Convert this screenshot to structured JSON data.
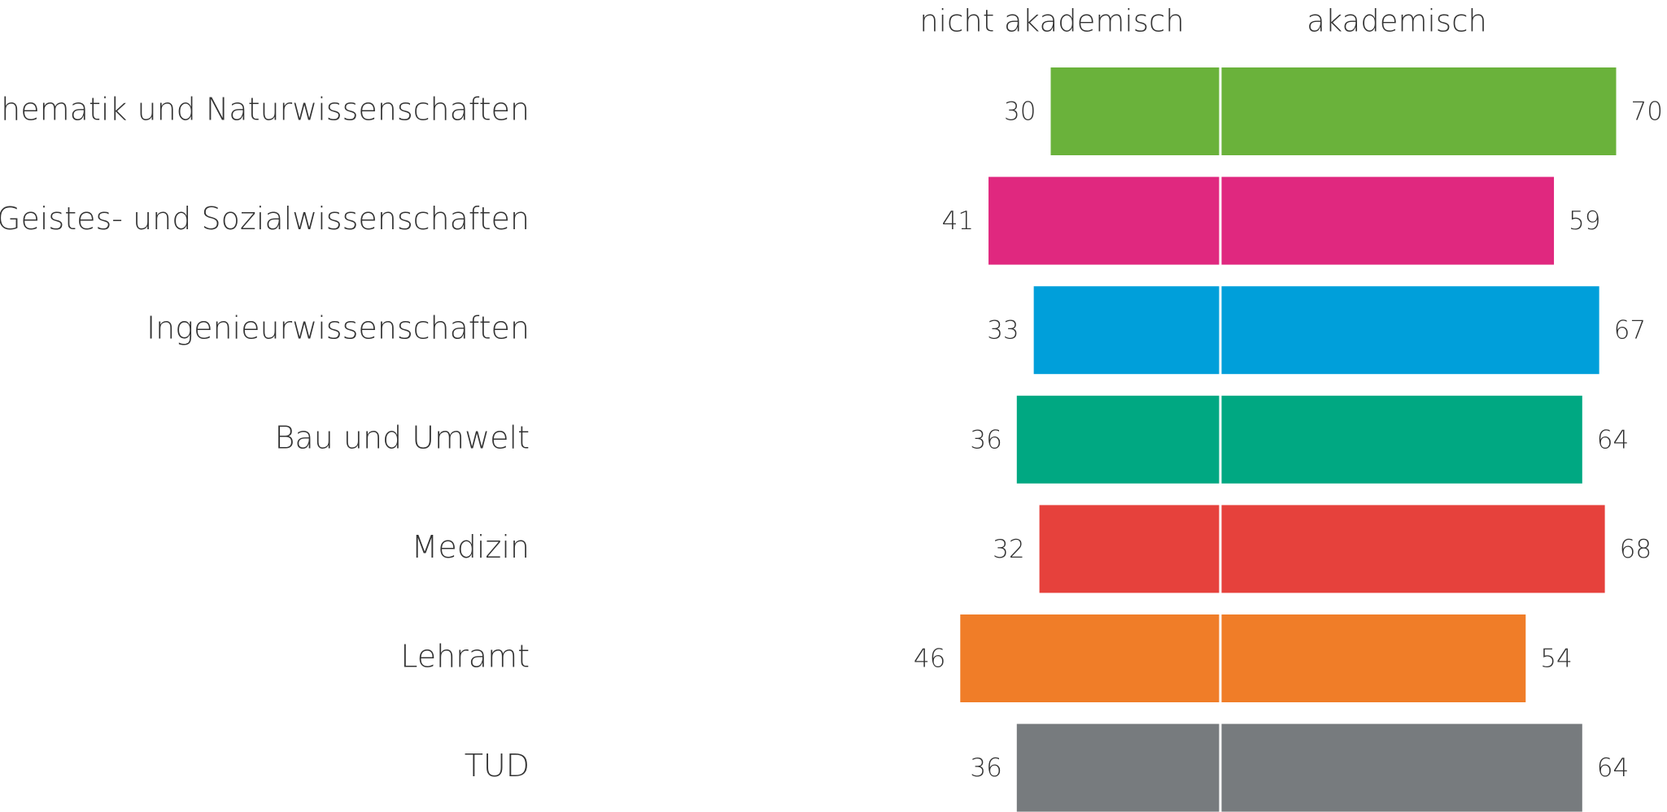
{
  "chart_data": {
    "type": "bar",
    "categories": [
      "Mathematik und Naturwissenschaften",
      "Geistes- und Sozialwissenschaften",
      "Ingenieurwissenschaften",
      "Bau und Umwelt",
      "Medizin",
      "Lehramt",
      "TUD"
    ],
    "colors": [
      "#6ab23b",
      "#e0287f",
      "#009fda",
      "#00a882",
      "#e6413c",
      "#f07d28",
      "#777b7e"
    ],
    "series": [
      {
        "name": "nicht akademisch",
        "values": [
          30,
          41,
          33,
          36,
          32,
          46,
          36
        ]
      },
      {
        "name": "akademisch",
        "values": [
          70,
          59,
          67,
          64,
          68,
          54,
          64
        ]
      }
    ]
  }
}
